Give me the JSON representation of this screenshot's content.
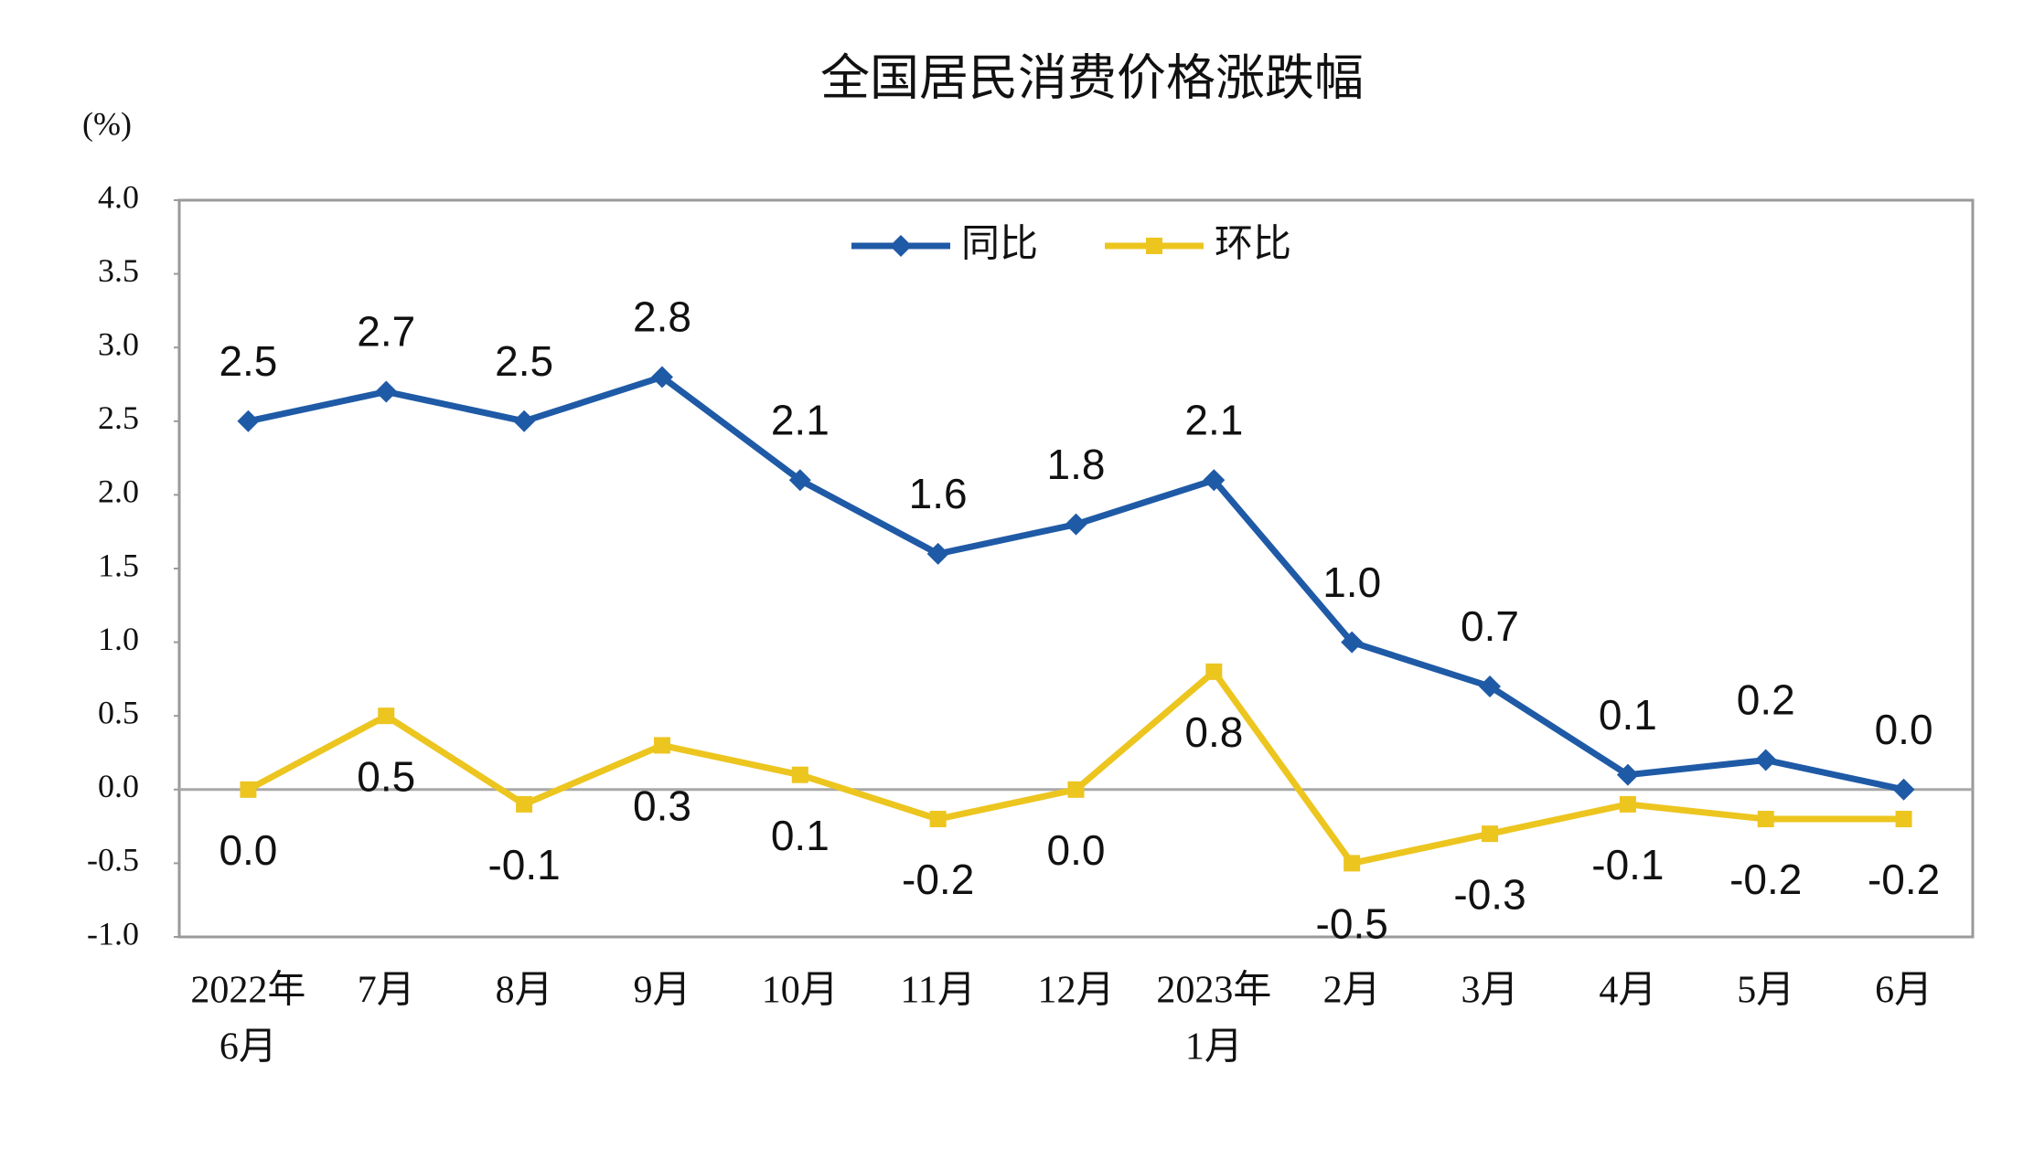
{
  "chart_data": {
    "type": "line",
    "title": "全国居民消费价格涨跌幅",
    "ylabel": "(%)",
    "categories": [
      [
        "2022年",
        "6月"
      ],
      [
        "7月"
      ],
      [
        "8月"
      ],
      [
        "9月"
      ],
      [
        "10月"
      ],
      [
        "11月"
      ],
      [
        "12月"
      ],
      [
        "2023年",
        "1月"
      ],
      [
        "2月"
      ],
      [
        "3月"
      ],
      [
        "4月"
      ],
      [
        "5月"
      ],
      [
        "6月"
      ]
    ],
    "series": [
      {
        "name": "同比",
        "color": "#1f5aa6",
        "marker": "diamond",
        "values": [
          2.5,
          2.7,
          2.5,
          2.8,
          2.1,
          1.6,
          1.8,
          2.1,
          1.0,
          0.7,
          0.1,
          0.2,
          0.0
        ],
        "value_labels": [
          "2.5",
          "2.7",
          "2.5",
          "2.8",
          "2.1",
          "1.6",
          "1.8",
          "2.1",
          "1.0",
          "0.7",
          "0.1",
          "0.2",
          "0.0"
        ]
      },
      {
        "name": "环比",
        "color": "#ecc51f",
        "marker": "square",
        "values": [
          0.0,
          0.5,
          -0.1,
          0.3,
          0.1,
          -0.2,
          0.0,
          0.8,
          -0.5,
          -0.3,
          -0.1,
          -0.2,
          -0.2
        ],
        "value_labels": [
          "0.0",
          "0.5",
          "-0.1",
          "0.3",
          "0.1",
          "-0.2",
          "0.0",
          "0.8",
          "-0.5",
          "-0.3",
          "-0.1",
          "-0.2",
          "-0.2"
        ]
      }
    ],
    "ylim": [
      -1.0,
      4.0
    ],
    "yticks": [
      {
        "value": -1.0,
        "label": "-1.0"
      },
      {
        "value": -0.5,
        "label": "-0.5"
      },
      {
        "value": 0.0,
        "label": "0.0"
      },
      {
        "value": 0.5,
        "label": "0.5"
      },
      {
        "value": 1.0,
        "label": "1.0"
      },
      {
        "value": 1.5,
        "label": "1.5"
      },
      {
        "value": 2.0,
        "label": "2.0"
      },
      {
        "value": 2.5,
        "label": "2.5"
      },
      {
        "value": 3.0,
        "label": "3.0"
      },
      {
        "value": 3.5,
        "label": "3.5"
      },
      {
        "value": 4.0,
        "label": "4.0"
      }
    ],
    "grid": false,
    "legend": "top"
  }
}
